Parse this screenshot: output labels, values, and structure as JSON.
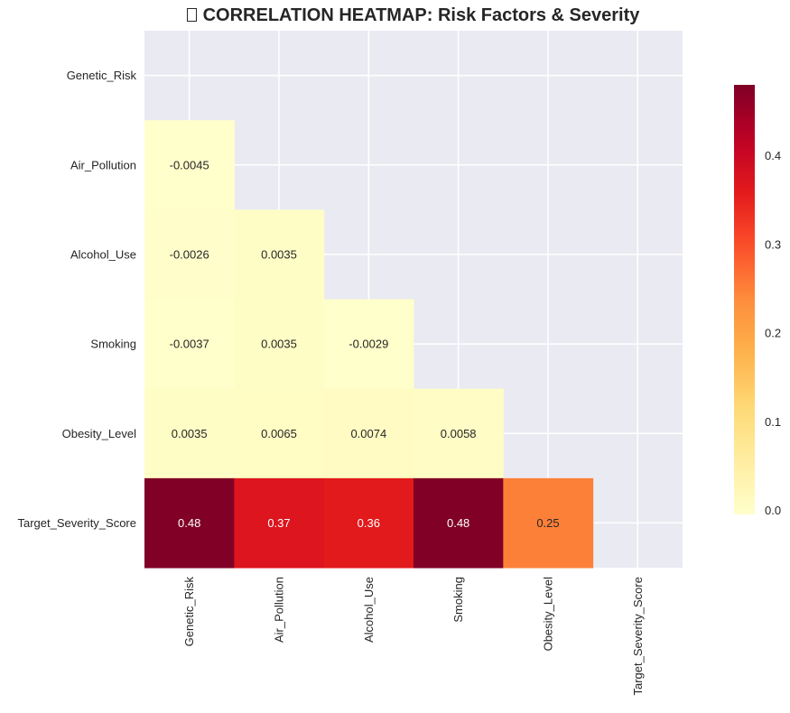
{
  "chart_data": {
    "type": "heatmap",
    "title_icon": "chart-icon",
    "title": "CORRELATION HEATMAP: Risk Factors & Severity",
    "xlabel": "",
    "ylabel": "",
    "rows": [
      "Genetic_Risk",
      "Air_Pollution",
      "Alcohol_Use",
      "Smoking",
      "Obesity_Level",
      "Target_Severity_Score"
    ],
    "columns": [
      "Genetic_Risk",
      "Air_Pollution",
      "Alcohol_Use",
      "Smoking",
      "Obesity_Level",
      "Target_Severity_Score"
    ],
    "mask": "upper-triangle-and-diagonal",
    "values": [
      [
        null,
        null,
        null,
        null,
        null,
        null
      ],
      [
        -0.0045,
        null,
        null,
        null,
        null,
        null
      ],
      [
        -0.0026,
        0.0035,
        null,
        null,
        null,
        null
      ],
      [
        -0.0037,
        0.0035,
        -0.0029,
        null,
        null,
        null
      ],
      [
        0.0035,
        0.0065,
        0.0074,
        0.0058,
        null,
        null
      ],
      [
        0.48,
        0.37,
        0.36,
        0.48,
        0.25,
        null
      ]
    ],
    "annotations": [
      [
        "",
        "",
        "",
        "",
        "",
        ""
      ],
      [
        "-0.0045",
        "",
        "",
        "",
        "",
        ""
      ],
      [
        "-0.0026",
        "0.0035",
        "",
        "",
        "",
        ""
      ],
      [
        "-0.0037",
        "0.0035",
        "-0.0029",
        "",
        "",
        ""
      ],
      [
        "0.0035",
        "0.0065",
        "0.0074",
        "0.0058",
        "",
        ""
      ],
      [
        "0.48",
        "0.37",
        "0.36",
        "0.48",
        "0.25",
        ""
      ]
    ],
    "colormap": "YlOrRd",
    "colorbar": {
      "range": [
        -0.0045,
        0.48
      ],
      "ticks": [
        0.0,
        0.1,
        0.2,
        0.3,
        0.4
      ],
      "tick_labels": [
        "0.0",
        "0.1",
        "0.2",
        "0.3",
        "0.4"
      ],
      "placement": "right"
    },
    "grid": true,
    "background_color": "#EAEAF2",
    "grid_color": "#FFFFFF"
  }
}
